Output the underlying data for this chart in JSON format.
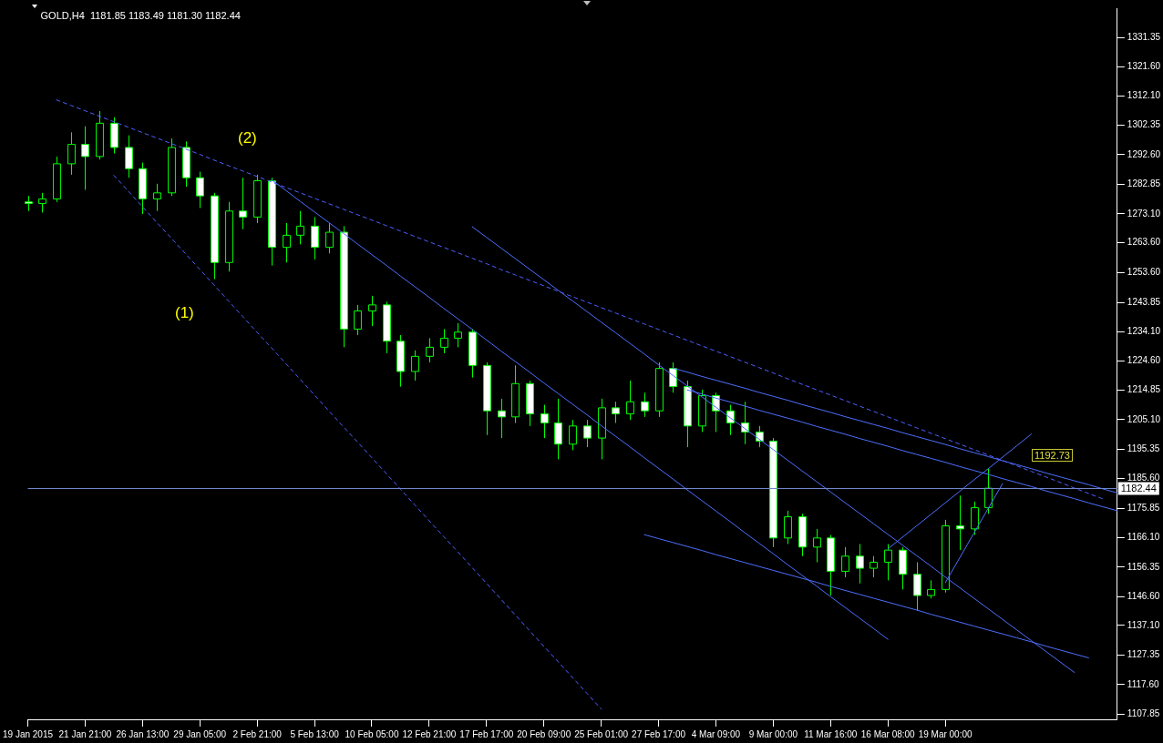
{
  "chart_data": {
    "type": "candlestick",
    "title": "GOLD,H4  1181.85 1183.49 1181.30 1182.44",
    "color": "#00ff00",
    "categories": [
      "19 Jan 2015",
      null,
      null,
      null,
      "21 Jan 21:00",
      null,
      null,
      null,
      "26 Jan 13:00",
      null,
      null,
      null,
      "29 Jan 05:00",
      null,
      null,
      null,
      "2 Feb 21:00",
      null,
      null,
      null,
      "5 Feb 13:00",
      null,
      null,
      null,
      "10 Feb 05:00",
      null,
      null,
      null,
      "12 Feb 21:00",
      null,
      null,
      null,
      "17 Feb 17:00",
      null,
      null,
      null,
      "20 Feb 09:00",
      null,
      null,
      null,
      "25 Feb 01:00",
      null,
      null,
      null,
      "27 Feb 17:00",
      null,
      null,
      null,
      "4 Mar 09:00",
      null,
      null,
      null,
      "9 Mar 00:00",
      null,
      null,
      null,
      "11 Mar 16:00",
      null,
      null,
      null,
      "16 Mar 08:00",
      null,
      null,
      null,
      "19 Mar 00:00",
      null,
      null,
      null,
      null,
      null,
      null,
      null,
      null,
      null,
      null,
      null,
      null
    ],
    "ohlc": [
      [
        1277,
        1279,
        1274,
        1276.5
      ],
      [
        1276.5,
        1280,
        1273.5,
        1278
      ],
      [
        1278,
        1292,
        1277,
        1289.6
      ],
      [
        1289.6,
        1300,
        1286,
        1296
      ],
      [
        1296,
        1302,
        1281,
        1292
      ],
      [
        1292,
        1307,
        1291,
        1303
      ],
      [
        1303,
        1305,
        1293,
        1295
      ],
      [
        1295,
        1299,
        1285,
        1288
      ],
      [
        1288,
        1290,
        1273,
        1278
      ],
      [
        1278,
        1283,
        1274,
        1280
      ],
      [
        1280,
        1298,
        1279,
        1295
      ],
      [
        1295,
        1297,
        1282,
        1285
      ],
      [
        1285,
        1287,
        1275,
        1279
      ],
      [
        1279,
        1280,
        1251.5,
        1257
      ],
      [
        1257,
        1277,
        1254,
        1274
      ],
      [
        1274,
        1285,
        1268,
        1272
      ],
      [
        1272,
        1286,
        1270,
        1284
      ],
      [
        1284,
        1285,
        1256,
        1262
      ],
      [
        1262,
        1270,
        1257,
        1266
      ],
      [
        1266,
        1274,
        1263,
        1269
      ],
      [
        1269,
        1272,
        1258,
        1262
      ],
      [
        1262,
        1270,
        1260,
        1267
      ],
      [
        1267,
        1269,
        1229,
        1235
      ],
      [
        1235,
        1243,
        1233,
        1241
      ],
      [
        1241,
        1246,
        1236,
        1243
      ],
      [
        1243,
        1244,
        1227,
        1231
      ],
      [
        1231,
        1233,
        1216,
        1221
      ],
      [
        1221,
        1228,
        1218,
        1226
      ],
      [
        1226,
        1232,
        1224,
        1229
      ],
      [
        1229,
        1235,
        1227,
        1232
      ],
      [
        1232,
        1237,
        1229,
        1234
      ],
      [
        1234,
        1235,
        1219,
        1223
      ],
      [
        1223,
        1224,
        1200,
        1208
      ],
      [
        1208,
        1212,
        1199,
        1206
      ],
      [
        1206,
        1223,
        1204,
        1217
      ],
      [
        1217,
        1218,
        1203,
        1207
      ],
      [
        1207,
        1210,
        1199,
        1204
      ],
      [
        1204,
        1212,
        1192,
        1197
      ],
      [
        1197,
        1205,
        1195,
        1203
      ],
      [
        1203,
        1205,
        1196,
        1199
      ],
      [
        1199,
        1212,
        1192,
        1209
      ],
      [
        1209,
        1211,
        1204,
        1207
      ],
      [
        1207,
        1218,
        1205,
        1211
      ],
      [
        1211,
        1214,
        1206,
        1208
      ],
      [
        1208,
        1224,
        1206,
        1222
      ],
      [
        1222,
        1224,
        1214,
        1216
      ],
      [
        1216,
        1218,
        1196,
        1203
      ],
      [
        1203,
        1215,
        1201,
        1213
      ],
      [
        1213,
        1214,
        1201,
        1208
      ],
      [
        1208,
        1210,
        1200,
        1204
      ],
      [
        1204,
        1211,
        1197,
        1201
      ],
      [
        1201,
        1203,
        1196,
        1198
      ],
      [
        1198,
        1199,
        1163,
        1166
      ],
      [
        1166,
        1175,
        1164,
        1173
      ],
      [
        1173,
        1174,
        1160,
        1163
      ],
      [
        1163,
        1169,
        1158,
        1166
      ],
      [
        1166,
        1167,
        1147,
        1155
      ],
      [
        1155,
        1163,
        1153,
        1160
      ],
      [
        1160,
        1164,
        1151,
        1156
      ],
      [
        1156,
        1160,
        1153,
        1158
      ],
      [
        1158,
        1164,
        1152,
        1162
      ],
      [
        1162,
        1163,
        1149,
        1154
      ],
      [
        1154,
        1158,
        1142,
        1147
      ],
      [
        1147,
        1152,
        1146,
        1149
      ],
      [
        1149,
        1172,
        1148,
        1170
      ],
      [
        1170,
        1180,
        1162,
        1169
      ],
      [
        1169,
        1178,
        1167,
        1176
      ],
      [
        1176,
        1189,
        1174,
        1182.44
      ],
      null,
      null,
      null,
      null,
      null,
      null,
      null,
      null,
      null
    ],
    "series": [
      {
        "type": "line",
        "color": "#4d5fff",
        "line_style": "dashed",
        "values": [
          null,
          null,
          1310.7,
          1308.9,
          1307.1,
          1305.3,
          1303.5,
          1301.7,
          1299.9,
          1298.1,
          1296.3,
          1294.5,
          1292.7,
          1290.8,
          1289.0,
          1287.2,
          1285.4,
          1283.6,
          1281.8,
          1280.0,
          1278.2,
          1276.4,
          1274.6,
          1272.8,
          1271.0,
          1269.2,
          1267.4,
          1265.6,
          1263.8,
          1262.0,
          1260.2,
          1258.4,
          1256.6,
          1254.7,
          1252.9,
          1251.1,
          1249.3,
          1247.5,
          1245.7,
          1243.9,
          1242.1,
          1240.3,
          1238.5,
          1236.7,
          1234.9,
          1233.1,
          1231.3,
          1229.5,
          1227.7,
          1225.9,
          1224.1,
          1222.3,
          1220.5,
          1218.6,
          1216.8,
          1215.0,
          1213.2,
          1211.4,
          1209.6,
          1207.8,
          1206.0,
          1204.2,
          1202.4,
          1200.6,
          1198.8,
          1197.0,
          1195.2,
          1193.4,
          1191.6,
          1189.8,
          1188.0,
          1186.2,
          1184.4,
          1182.5,
          1180.7,
          1178.9,
          null
        ]
      },
      {
        "type": "line",
        "color": "#4d5fff",
        "line_style": "dashed",
        "values": [
          null,
          null,
          null,
          null,
          null,
          null,
          1285.8,
          1280.6,
          1275.4,
          1270.2,
          1265.1,
          1259.9,
          1254.7,
          1249.5,
          1244.3,
          1239.1,
          1233.9,
          1228.8,
          1223.6,
          1218.4,
          1213.2,
          1208.0,
          1202.8,
          1197.7,
          1192.5,
          1187.3,
          1182.1,
          1176.9,
          1171.7,
          1166.5,
          1161.4,
          1156.2,
          1151.0,
          1145.8,
          1140.6,
          1135.4,
          1130.2,
          1125.1,
          1119.9,
          1114.7,
          1109.5,
          null,
          null,
          null,
          null,
          null,
          null,
          null,
          null,
          null,
          null,
          null,
          null,
          null,
          null,
          null,
          null,
          null,
          null,
          null,
          null,
          null,
          null,
          null,
          null,
          null,
          null,
          null,
          null,
          null,
          null,
          null,
          null,
          null,
          null,
          null,
          null
        ]
      },
      {
        "type": "line",
        "color": "#4d6fff",
        "line_style": "solid",
        "values": [
          null,
          null,
          null,
          null,
          null,
          null,
          null,
          null,
          null,
          null,
          null,
          null,
          null,
          null,
          null,
          null,
          null,
          1284.3,
          1280.8,
          1277.2,
          1273.7,
          1270.2,
          1266.7,
          1263.1,
          1259.6,
          1256.1,
          1252.5,
          1249.0,
          1245.5,
          1241.9,
          1238.4,
          1234.9,
          1231.4,
          1227.8,
          1224.3,
          1220.8,
          1217.2,
          1213.7,
          1210.2,
          1206.7,
          1203.1,
          1199.6,
          1196.1,
          1192.5,
          1189.0,
          1185.5,
          1181.9,
          1178.4,
          1174.9,
          1171.4,
          1167.8,
          1164.3,
          1160.8,
          1157.2,
          1153.7,
          1150.2,
          1146.6,
          1143.1,
          1139.6,
          1136.1,
          1132.5,
          null,
          null,
          null,
          null,
          null,
          null,
          null,
          null,
          null,
          null,
          null,
          null,
          null,
          null,
          null,
          null
        ]
      },
      {
        "type": "line",
        "color": "#4d6fff",
        "line_style": "solid",
        "values": [
          null,
          null,
          null,
          null,
          null,
          null,
          null,
          null,
          null,
          null,
          null,
          null,
          null,
          null,
          null,
          null,
          null,
          null,
          null,
          null,
          null,
          null,
          null,
          null,
          null,
          null,
          null,
          null,
          null,
          null,
          null,
          1268.8,
          1265.3,
          1261.8,
          1258.3,
          1254.8,
          1251.3,
          1247.8,
          1244.3,
          1240.8,
          1237.3,
          1233.8,
          1230.3,
          1226.8,
          1223.2,
          1219.7,
          1216.2,
          1212.7,
          1209.2,
          1205.7,
          1202.2,
          1198.7,
          1195.2,
          1191.7,
          1188.2,
          1184.7,
          1181.2,
          1177.7,
          1174.2,
          1170.7,
          1167.2,
          1163.7,
          1160.2,
          1156.7,
          1153.1,
          1149.6,
          1146.1,
          1142.6,
          1139.1,
          1135.6,
          1132.1,
          1128.6,
          1125.1,
          1121.6,
          null,
          null,
          null
        ]
      },
      {
        "type": "line",
        "color": "#4d6fff",
        "line_style": "solid",
        "values": [
          null,
          null,
          null,
          null,
          null,
          null,
          null,
          null,
          null,
          null,
          null,
          null,
          null,
          null,
          null,
          null,
          null,
          null,
          null,
          null,
          null,
          null,
          null,
          null,
          null,
          null,
          null,
          null,
          null,
          null,
          null,
          null,
          null,
          null,
          null,
          null,
          null,
          null,
          null,
          null,
          null,
          null,
          null,
          null,
          null,
          1222.1,
          1220.8,
          1219.4,
          1218.1,
          1216.8,
          1215.5,
          1214.1,
          1212.8,
          1211.5,
          1210.1,
          1208.8,
          1207.5,
          1206.1,
          1204.8,
          1203.5,
          1202.2,
          1200.8,
          1199.5,
          1198.2,
          1196.9,
          1195.5,
          1194.2,
          1192.9,
          1191.5,
          1190.2,
          1188.9,
          1187.5,
          1186.2,
          1184.9,
          1183.6,
          1182.2,
          1180.9
        ]
      },
      {
        "type": "line",
        "color": "#4d6fff",
        "line_style": "solid",
        "values": [
          null,
          null,
          null,
          null,
          null,
          null,
          null,
          null,
          null,
          null,
          null,
          null,
          null,
          null,
          null,
          null,
          null,
          null,
          null,
          null,
          null,
          null,
          null,
          null,
          null,
          null,
          null,
          null,
          null,
          null,
          null,
          null,
          null,
          null,
          null,
          null,
          null,
          null,
          null,
          null,
          null,
          null,
          null,
          null,
          null,
          null,
          1214.9,
          1213.6,
          1212.2,
          1210.9,
          1209.6,
          1208.2,
          1206.9,
          1205.6,
          1204.3,
          1202.9,
          1201.6,
          1200.3,
          1198.9,
          1197.6,
          1196.3,
          1194.9,
          1193.6,
          1192.3,
          1191.0,
          1189.6,
          1188.3,
          1187.0,
          1185.6,
          1184.3,
          1183.0,
          1181.6,
          1180.3,
          1179.0,
          1177.6,
          1176.3,
          1175.0
        ]
      },
      {
        "type": "line",
        "color": "#4d6fff",
        "line_style": "solid",
        "values": [
          null,
          null,
          null,
          null,
          null,
          null,
          null,
          null,
          null,
          null,
          null,
          null,
          null,
          null,
          null,
          null,
          null,
          null,
          null,
          null,
          null,
          null,
          null,
          null,
          null,
          null,
          null,
          null,
          null,
          null,
          null,
          null,
          null,
          null,
          null,
          null,
          null,
          null,
          null,
          null,
          null,
          null,
          null,
          1167.1,
          1165.8,
          1164.5,
          1163.2,
          1161.9,
          1160.5,
          1159.2,
          1157.9,
          1156.6,
          1155.3,
          1154.0,
          1152.7,
          1151.4,
          1150.0,
          1148.7,
          1147.4,
          1146.1,
          1144.8,
          1143.5,
          1142.2,
          1140.8,
          1139.5,
          1138.2,
          1136.9,
          1135.6,
          1134.3,
          1133.0,
          1131.7,
          1130.3,
          1129.0,
          1127.7,
          1126.4,
          null,
          null
        ]
      },
      {
        "type": "line",
        "color": "#4d6fff",
        "line_style": "solid",
        "values": [
          null,
          null,
          null,
          null,
          null,
          null,
          null,
          null,
          null,
          null,
          null,
          null,
          null,
          null,
          null,
          null,
          null,
          null,
          null,
          null,
          null,
          null,
          null,
          null,
          null,
          null,
          null,
          null,
          null,
          null,
          null,
          null,
          null,
          null,
          null,
          null,
          null,
          null,
          null,
          null,
          null,
          null,
          null,
          null,
          null,
          null,
          null,
          null,
          null,
          null,
          null,
          null,
          null,
          null,
          null,
          null,
          null,
          null,
          null,
          null,
          1162.4,
          1166.2,
          1170.0,
          1173.8,
          1177.6,
          1181.4,
          1185.2,
          1188.9,
          1192.7,
          1196.5,
          1200.3,
          null,
          null,
          null,
          null,
          null,
          null
        ]
      },
      {
        "type": "line",
        "color": "#4d6fff",
        "line_style": "solid",
        "values": [
          null,
          null,
          null,
          null,
          null,
          null,
          null,
          null,
          null,
          null,
          null,
          null,
          null,
          null,
          null,
          null,
          null,
          null,
          null,
          null,
          null,
          null,
          null,
          null,
          null,
          null,
          null,
          null,
          null,
          null,
          null,
          null,
          null,
          null,
          null,
          null,
          null,
          null,
          null,
          null,
          null,
          null,
          null,
          null,
          null,
          null,
          null,
          null,
          null,
          null,
          null,
          null,
          null,
          null,
          null,
          null,
          null,
          null,
          null,
          null,
          null,
          null,
          null,
          null,
          1151.2,
          1159.4,
          1167.6,
          1175.8,
          1184.0,
          null,
          null,
          null,
          null,
          null,
          null,
          null,
          null
        ]
      }
    ],
    "ref_lines": [
      {
        "axis": "y",
        "value": 1182.44,
        "label": "1182.44",
        "color": "#6f86c8"
      }
    ],
    "annotations": [
      "(1)",
      "(2)",
      "1192.73"
    ],
    "colors": [
      "#ffffff",
      "#000000",
      "#000000",
      "#000000",
      "#ffffff",
      "#000000",
      "#ffffff",
      "#ffffff",
      "#ffffff",
      "#000000",
      "#000000",
      "#ffffff",
      "#ffffff",
      "#ffffff",
      "#000000",
      "#ffffff",
      "#000000",
      "#ffffff",
      "#000000",
      "#000000",
      "#ffffff",
      "#000000",
      "#ffffff",
      "#000000",
      "#000000",
      "#ffffff",
      "#ffffff",
      "#000000",
      "#000000",
      "#000000",
      "#000000",
      "#ffffff",
      "#ffffff",
      "#ffffff",
      "#000000",
      "#ffffff",
      "#ffffff",
      "#ffffff",
      "#000000",
      "#ffffff",
      "#000000",
      "#ffffff",
      "#000000",
      "#ffffff",
      "#000000",
      "#ffffff",
      "#ffffff",
      "#000000",
      "#ffffff",
      "#ffffff",
      "#ffffff",
      "#ffffff",
      "#ffffff",
      "#000000",
      "#ffffff",
      "#000000",
      "#ffffff",
      "#000000",
      "#ffffff",
      "#000000",
      "#000000",
      "#ffffff",
      "#ffffff",
      "#000000",
      "#000000",
      "#ffffff",
      "#000000",
      "#000000",
      null,
      null,
      null,
      null,
      null,
      null,
      null,
      null,
      null
    ],
    "ylim": [
      1106.1,
      1341.0
    ],
    "yticks": [
      1331.35,
      {
        "value": 1321.6,
        "label": "1321.60"
      },
      {
        "value": 1312.1,
        "label": "1312.10"
      },
      1302.35,
      {
        "value": 1292.6,
        "label": "1292.60"
      },
      1282.85,
      {
        "value": 1273.1,
        "label": "1273.10"
      },
      {
        "value": 1263.6,
        "label": "1263.60"
      },
      {
        "value": 1253.6,
        "label": "1253.60"
      },
      1243.85,
      {
        "value": 1234.1,
        "label": "1234.10"
      },
      {
        "value": 1224.6,
        "label": "1224.60"
      },
      1214.85,
      {
        "value": 1205.1,
        "label": "1205.10"
      },
      1195.35,
      {
        "value": 1185.6,
        "label": "1185.60"
      },
      1175.85,
      {
        "value": 1166.1,
        "label": "1166.10"
      },
      1156.35,
      {
        "value": 1146.6,
        "label": "1146.60"
      },
      {
        "value": 1137.1,
        "label": "1137.10"
      },
      1127.35,
      {
        "value": 1117.6,
        "label": "1117.60"
      },
      1107.85
    ]
  }
}
